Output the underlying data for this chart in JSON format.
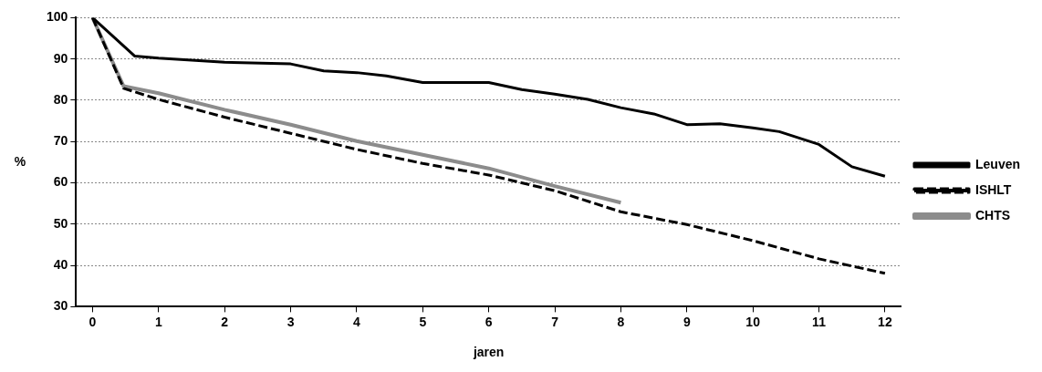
{
  "chart_data": {
    "type": "line",
    "xlabel": "jaren",
    "ylabel": "%",
    "xlim": [
      -0.25,
      12.25
    ],
    "xticks": [
      0,
      1,
      2,
      3,
      4,
      5,
      6,
      7,
      8,
      9,
      10,
      11,
      12
    ],
    "ylim": [
      30,
      100
    ],
    "yticks": [
      30,
      40,
      50,
      60,
      70,
      80,
      90,
      100
    ],
    "grid": "y",
    "legend": "right",
    "marker": "none",
    "series": [
      {
        "name": "Leuven",
        "color": "#000000",
        "line_style": "solid",
        "x": [
          0,
          0.64,
          1,
          2,
          3,
          3.5,
          4,
          4.45,
          5,
          6,
          6.5,
          7,
          7.5,
          8,
          8.5,
          9,
          9.5,
          10,
          10.4,
          11,
          11.5,
          12
        ],
        "values": [
          100,
          90.7,
          90.2,
          89.2,
          88.8,
          87.1,
          86.7,
          85.9,
          84.3,
          84.3,
          82.6,
          81.5,
          80.2,
          78.2,
          76.7,
          74.1,
          74.3,
          73.3,
          72.4,
          69.3,
          63.9,
          61.6
        ]
      },
      {
        "name": "ISHLT",
        "color": "#000000",
        "line_style": "dashed",
        "x": [
          0,
          0.47,
          1,
          2,
          3,
          4,
          5,
          6,
          7,
          8,
          9,
          10,
          11,
          12
        ],
        "values": [
          100,
          82.9,
          80.2,
          75.9,
          72,
          68.1,
          64.7,
          61.9,
          58.1,
          53,
          49.9,
          46,
          41.6,
          38.1
        ]
      },
      {
        "name": "CHTS",
        "color": "#8c8c8c",
        "line_style": "solid",
        "x": [
          0,
          0.47,
          1,
          2,
          3,
          4,
          5,
          6,
          7,
          8
        ],
        "values": [
          100,
          83.4,
          81.7,
          77.7,
          74.1,
          70.1,
          66.8,
          63.5,
          59.2,
          55.2
        ]
      }
    ]
  }
}
